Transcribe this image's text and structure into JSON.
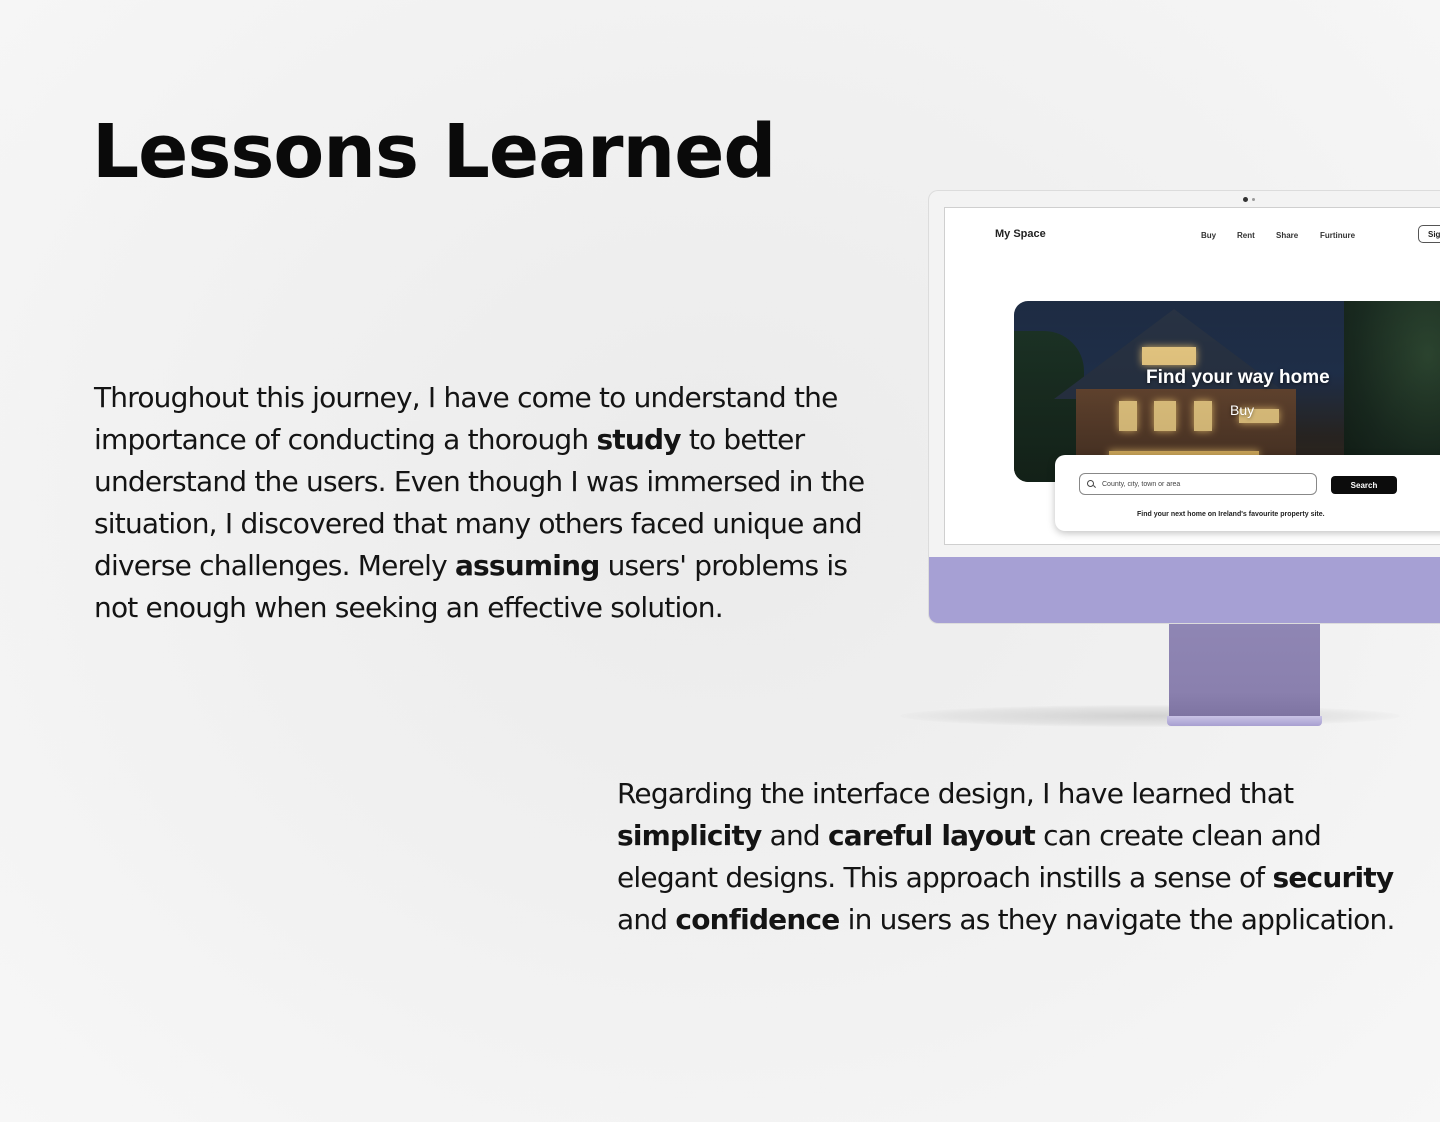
{
  "page": {
    "title": "Lessons Learned"
  },
  "paragraph_1": {
    "t1": "Throughout this journey, I have come to understand the importance of conducting a thorough ",
    "b1": "study",
    "t2": " to better understand the users. Even though I was immersed in the situation, I discovered that many others faced unique and diverse challenges. Merely ",
    "b2": "assuming",
    "t3": " users' problems is not enough when seeking an effective solution."
  },
  "paragraph_2": {
    "t1": "Regarding the interface design, I have learned that ",
    "b1": "simplicity",
    "t2": " and ",
    "b2": "careful layout",
    "t3": " can create clean and elegant designs. This approach instills a sense of ",
    "b3": "security",
    "t4": " and ",
    "b4": "confidence",
    "t5": " in users as they navigate the application."
  },
  "mockup": {
    "device_color": "#a6a0d4",
    "site": {
      "logo": "My Space",
      "nav": [
        "Buy",
        "Rent",
        "Share",
        "Furtinure"
      ],
      "signin_label": "Sign in",
      "hero_title": "Find your way home",
      "hero_sub": "Buy",
      "search_placeholder": "County, city, town or area",
      "search_button": "Search",
      "caption": "Find your next home on Ireland's favourite property site."
    }
  }
}
